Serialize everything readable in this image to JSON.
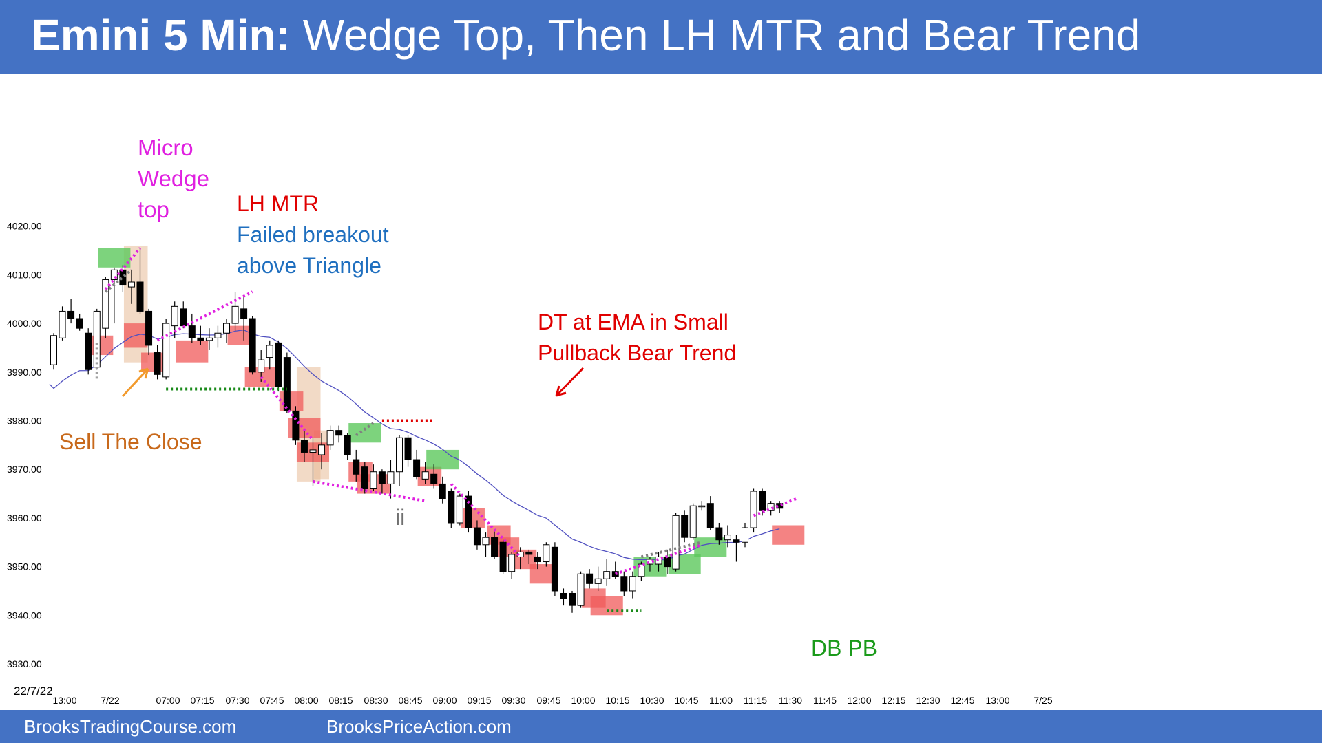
{
  "title": {
    "bold": "Emini 5 Min:",
    "rest": " Wedge Top, Then LH MTR and Bear Trend"
  },
  "footer": {
    "left": "BrooksTradingCourse.com",
    "right": "BrooksPriceAction.com"
  },
  "colors": {
    "brand_blue": "#4472c4",
    "bear_box": "#f05a5a",
    "bull_box": "#5cc85c",
    "tan_box": "#e8bb98",
    "magenta": "#e020e0",
    "red_text": "#e00000",
    "blue_text": "#1f6fbf",
    "orange_text": "#c8691b",
    "green_text": "#1a9a1a",
    "ema": "#5050c0"
  },
  "annotations": {
    "micro_wedge": [
      "Micro",
      "Wedge",
      "top"
    ],
    "lh_mtr": "LH MTR",
    "failed_breakout": [
      "Failed breakout",
      "above Triangle"
    ],
    "dt_ema": [
      "DT at EMA in Small",
      "Pullback Bear Trend"
    ],
    "sell_close": "Sell The Close",
    "ii": "ii",
    "db_pb": "DB PB"
  },
  "chart_data": {
    "type": "candlestick",
    "date_label": "22/7/22",
    "y_ticks": [
      "4020.00",
      "4010.00",
      "4000.00",
      "3990.00",
      "3980.00",
      "3970.00",
      "3960.00",
      "3950.00",
      "3940.00",
      "3930.00"
    ],
    "x_ticks": [
      "13:00",
      "7/22",
      "07:00",
      "07:15",
      "07:30",
      "07:45",
      "08:00",
      "08:15",
      "08:30",
      "08:45",
      "09:00",
      "09:15",
      "09:30",
      "09:45",
      "10:00",
      "10:15",
      "10:30",
      "10:45",
      "11:00",
      "11:15",
      "11:30",
      "11:45",
      "12:00",
      "12:15",
      "12:30",
      "12:45",
      "13:00",
      "7/25"
    ],
    "ylim": [
      3926,
      4022
    ],
    "candles": [
      [
        3991.5,
        3998.0,
        3990.5,
        3997.5
      ],
      [
        3997.0,
        4003.5,
        3996.5,
        4002.5
      ],
      [
        4002.5,
        4005.0,
        4000.0,
        4001.0
      ],
      [
        4001.0,
        4002.0,
        3998.5,
        3999.0
      ],
      [
        3998.0,
        3999.0,
        3989.5,
        3990.5
      ],
      [
        3991.0,
        4003.0,
        3990.5,
        4002.5
      ],
      [
        3999.0,
        4009.5,
        3997.0,
        4009.0
      ],
      [
        4009.0,
        4011.5,
        4000.0,
        4011.0
      ],
      [
        4011.0,
        4012.0,
        4006.5,
        4008.0
      ],
      [
        4007.5,
        4011.0,
        4004.0,
        4008.5
      ],
      [
        4008.5,
        4015.5,
        4002.0,
        4002.5
      ],
      [
        4002.5,
        4003.0,
        3993.5,
        3995.5
      ],
      [
        3994.0,
        3995.5,
        3988.5,
        3989.5
      ],
      [
        3989.0,
        4001.0,
        3988.5,
        4000.0
      ],
      [
        3999.5,
        4004.5,
        3997.0,
        4003.5
      ],
      [
        4003.0,
        4004.5,
        3999.0,
        3999.5
      ],
      [
        3999.5,
        4002.0,
        3996.0,
        3997.0
      ],
      [
        3997.0,
        3999.5,
        3995.5,
        3996.5
      ],
      [
        3996.5,
        3999.0,
        3994.5,
        3997.0
      ],
      [
        3997.0,
        3999.5,
        3995.0,
        3998.0
      ],
      [
        3998.0,
        4001.0,
        3996.0,
        4000.0
      ],
      [
        4000.0,
        4006.5,
        3998.5,
        4003.5
      ],
      [
        4003.0,
        4005.5,
        3996.5,
        4001.0
      ],
      [
        4001.0,
        4001.5,
        3989.5,
        3990.0
      ],
      [
        3990.0,
        3994.5,
        3988.0,
        3992.5
      ],
      [
        3993.0,
        3996.5,
        3990.5,
        3995.5
      ],
      [
        3996.0,
        3996.5,
        3986.0,
        3987.0
      ],
      [
        3993.0,
        3994.0,
        3981.5,
        3982.0
      ],
      [
        3982.0,
        3983.0,
        3975.0,
        3976.0
      ],
      [
        3976.0,
        3978.0,
        3971.5,
        3973.5
      ],
      [
        3973.5,
        3976.5,
        3966.5,
        3974.0
      ],
      [
        3973.0,
        3977.5,
        3970.0,
        3975.0
      ],
      [
        3975.0,
        3979.0,
        3974.0,
        3978.0
      ],
      [
        3978.0,
        3979.0,
        3975.5,
        3977.0
      ],
      [
        3977.0,
        3977.5,
        3972.0,
        3973.0
      ],
      [
        3972.0,
        3974.0,
        3967.5,
        3969.0
      ],
      [
        3970.5,
        3971.5,
        3965.0,
        3966.0
      ],
      [
        3966.0,
        3971.0,
        3965.5,
        3969.5
      ],
      [
        3969.5,
        3970.0,
        3965.0,
        3967.0
      ],
      [
        3967.0,
        3972.0,
        3964.0,
        3969.5
      ],
      [
        3969.5,
        3977.0,
        3966.5,
        3976.5
      ],
      [
        3976.5,
        3977.0,
        3970.5,
        3972.0
      ],
      [
        3972.0,
        3974.0,
        3968.0,
        3968.5
      ],
      [
        3968.0,
        3971.5,
        3967.0,
        3969.5
      ],
      [
        3969.0,
        3971.0,
        3966.0,
        3967.0
      ],
      [
        3967.0,
        3968.5,
        3963.0,
        3964.0
      ],
      [
        3965.5,
        3966.0,
        3958.0,
        3959.0
      ],
      [
        3959.0,
        3965.0,
        3958.5,
        3964.5
      ],
      [
        3964.5,
        3965.5,
        3957.0,
        3958.0
      ],
      [
        3958.0,
        3959.5,
        3953.5,
        3954.5
      ],
      [
        3954.5,
        3957.0,
        3952.0,
        3956.0
      ],
      [
        3956.0,
        3957.5,
        3951.5,
        3952.0
      ],
      [
        3955.0,
        3955.5,
        3948.5,
        3949.0
      ],
      [
        3949.0,
        3953.0,
        3947.5,
        3952.5
      ],
      [
        3952.0,
        3954.0,
        3949.5,
        3953.0
      ],
      [
        3953.0,
        3953.5,
        3950.5,
        3952.5
      ],
      [
        3952.0,
        3953.0,
        3949.5,
        3951.0
      ],
      [
        3951.0,
        3955.0,
        3950.0,
        3954.5
      ],
      [
        3954.0,
        3955.0,
        3944.0,
        3945.0
      ],
      [
        3944.5,
        3945.5,
        3942.0,
        3943.5
      ],
      [
        3944.5,
        3945.0,
        3940.5,
        3942.0
      ],
      [
        3942.0,
        3949.0,
        3941.5,
        3948.5
      ],
      [
        3948.5,
        3949.5,
        3945.5,
        3946.5
      ],
      [
        3946.5,
        3950.0,
        3945.0,
        3947.5
      ],
      [
        3947.5,
        3951.5,
        3946.0,
        3949.0
      ],
      [
        3949.0,
        3951.0,
        3947.5,
        3948.0
      ],
      [
        3948.0,
        3949.0,
        3944.0,
        3945.0
      ],
      [
        3945.0,
        3949.0,
        3943.5,
        3948.0
      ],
      [
        3948.0,
        3951.0,
        3947.0,
        3950.5
      ],
      [
        3950.5,
        3952.0,
        3949.0,
        3951.5
      ],
      [
        3950.5,
        3953.0,
        3949.0,
        3952.0
      ],
      [
        3952.0,
        3953.5,
        3948.5,
        3950.0
      ],
      [
        3949.5,
        3961.0,
        3949.0,
        3960.5
      ],
      [
        3960.5,
        3961.5,
        3955.0,
        3956.0
      ],
      [
        3956.0,
        3963.0,
        3955.5,
        3962.5
      ],
      [
        3962.5,
        3963.5,
        3961.5,
        3962.5
      ],
      [
        3963.0,
        3964.5,
        3957.5,
        3958.0
      ],
      [
        3958.0,
        3959.0,
        3954.5,
        3955.5
      ],
      [
        3955.5,
        3958.5,
        3954.0,
        3956.5
      ],
      [
        3955.5,
        3956.5,
        3951.0,
        3955.0
      ],
      [
        3955.0,
        3959.0,
        3954.0,
        3958.0
      ],
      [
        3958.0,
        3966.0,
        3957.0,
        3965.5
      ],
      [
        3965.5,
        3966.0,
        3960.5,
        3961.5
      ],
      [
        3961.5,
        3963.5,
        3960.5,
        3963.0
      ],
      [
        3963.0,
        3963.5,
        3961.0,
        3962.0
      ]
    ]
  }
}
